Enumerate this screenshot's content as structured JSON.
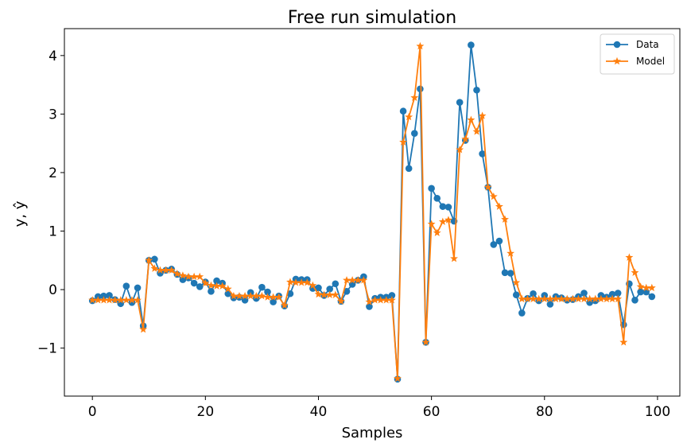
{
  "chart_data": {
    "type": "line",
    "title": "Free run simulation",
    "xlabel": "Samples",
    "ylabel": "y, ŷ",
    "xlim": [
      -4.95,
      103.95
    ],
    "ylim": [
      -1.82,
      4.46
    ],
    "xticks": [
      0,
      20,
      40,
      60,
      80,
      100
    ],
    "yticks": [
      -1,
      0,
      1,
      2,
      3,
      4
    ],
    "ytick_labels": [
      "−1",
      "0",
      "1",
      "2",
      "3",
      "4"
    ],
    "grid": false,
    "legend_position": "top-right",
    "x": [
      0,
      1,
      2,
      3,
      4,
      5,
      6,
      7,
      8,
      9,
      10,
      11,
      12,
      13,
      14,
      15,
      16,
      17,
      18,
      19,
      20,
      21,
      22,
      23,
      24,
      25,
      26,
      27,
      28,
      29,
      30,
      31,
      32,
      33,
      34,
      35,
      36,
      37,
      38,
      39,
      40,
      41,
      42,
      43,
      44,
      45,
      46,
      47,
      48,
      49,
      50,
      51,
      52,
      53,
      54,
      55,
      56,
      57,
      58,
      59,
      60,
      61,
      62,
      63,
      64,
      65,
      66,
      67,
      68,
      69,
      70,
      71,
      72,
      73,
      74,
      75,
      76,
      77,
      78,
      79,
      80,
      81,
      82,
      83,
      84,
      85,
      86,
      87,
      88,
      89,
      90,
      91,
      92,
      93,
      94,
      95,
      96,
      97,
      98,
      99
    ],
    "series": [
      {
        "name": "Data",
        "color": "#1f77b4",
        "marker": "circle",
        "values": [
          -0.19,
          -0.12,
          -0.11,
          -0.1,
          -0.17,
          -0.24,
          0.06,
          -0.22,
          0.03,
          -0.62,
          0.5,
          0.52,
          0.28,
          0.33,
          0.35,
          0.26,
          0.17,
          0.2,
          0.11,
          0.05,
          0.13,
          -0.03,
          0.15,
          0.11,
          -0.07,
          -0.14,
          -0.13,
          -0.18,
          -0.05,
          -0.15,
          0.04,
          -0.04,
          -0.21,
          -0.11,
          -0.28,
          -0.07,
          0.18,
          0.17,
          0.17,
          0.02,
          0.03,
          -0.1,
          0.01,
          0.1,
          -0.2,
          -0.03,
          0.09,
          0.16,
          0.22,
          -0.29,
          -0.15,
          -0.13,
          -0.13,
          -0.1,
          -1.53,
          3.05,
          2.07,
          2.67,
          3.43,
          -0.9,
          1.73,
          1.56,
          1.42,
          1.41,
          1.17,
          3.2,
          2.55,
          4.18,
          3.41,
          2.32,
          1.75,
          0.77,
          0.83,
          0.29,
          0.28,
          -0.09,
          -0.4,
          -0.15,
          -0.07,
          -0.19,
          -0.1,
          -0.25,
          -0.12,
          -0.14,
          -0.18,
          -0.17,
          -0.12,
          -0.06,
          -0.22,
          -0.19,
          -0.1,
          -0.13,
          -0.08,
          -0.06,
          -0.6,
          0.1,
          -0.18,
          -0.04,
          -0.04,
          -0.12
        ]
      },
      {
        "name": "Model",
        "color": "#ff7f0e",
        "marker": "star",
        "values": [
          -0.18,
          -0.18,
          -0.18,
          -0.18,
          -0.18,
          -0.18,
          -0.18,
          -0.18,
          -0.18,
          -0.68,
          0.5,
          0.36,
          0.33,
          0.33,
          0.33,
          0.27,
          0.24,
          0.22,
          0.22,
          0.22,
          0.11,
          0.07,
          0.06,
          0.06,
          0.01,
          -0.11,
          -0.11,
          -0.11,
          -0.11,
          -0.11,
          -0.11,
          -0.13,
          -0.13,
          -0.13,
          -0.27,
          0.13,
          0.12,
          0.12,
          0.12,
          0.07,
          -0.08,
          -0.09,
          -0.09,
          -0.09,
          -0.2,
          0.16,
          0.16,
          0.16,
          0.16,
          -0.21,
          -0.18,
          -0.18,
          -0.18,
          -0.18,
          -1.52,
          2.52,
          2.95,
          3.28,
          4.16,
          -0.9,
          1.12,
          0.97,
          1.16,
          1.19,
          0.53,
          2.39,
          2.57,
          2.9,
          2.7,
          2.97,
          1.75,
          1.59,
          1.42,
          1.2,
          0.62,
          0.12,
          -0.16,
          -0.16,
          -0.16,
          -0.16,
          -0.16,
          -0.16,
          -0.16,
          -0.16,
          -0.16,
          -0.16,
          -0.16,
          -0.16,
          -0.16,
          -0.16,
          -0.16,
          -0.16,
          -0.16,
          -0.16,
          -0.9,
          0.55,
          0.29,
          0.05,
          0.03,
          0.03
        ]
      }
    ]
  }
}
